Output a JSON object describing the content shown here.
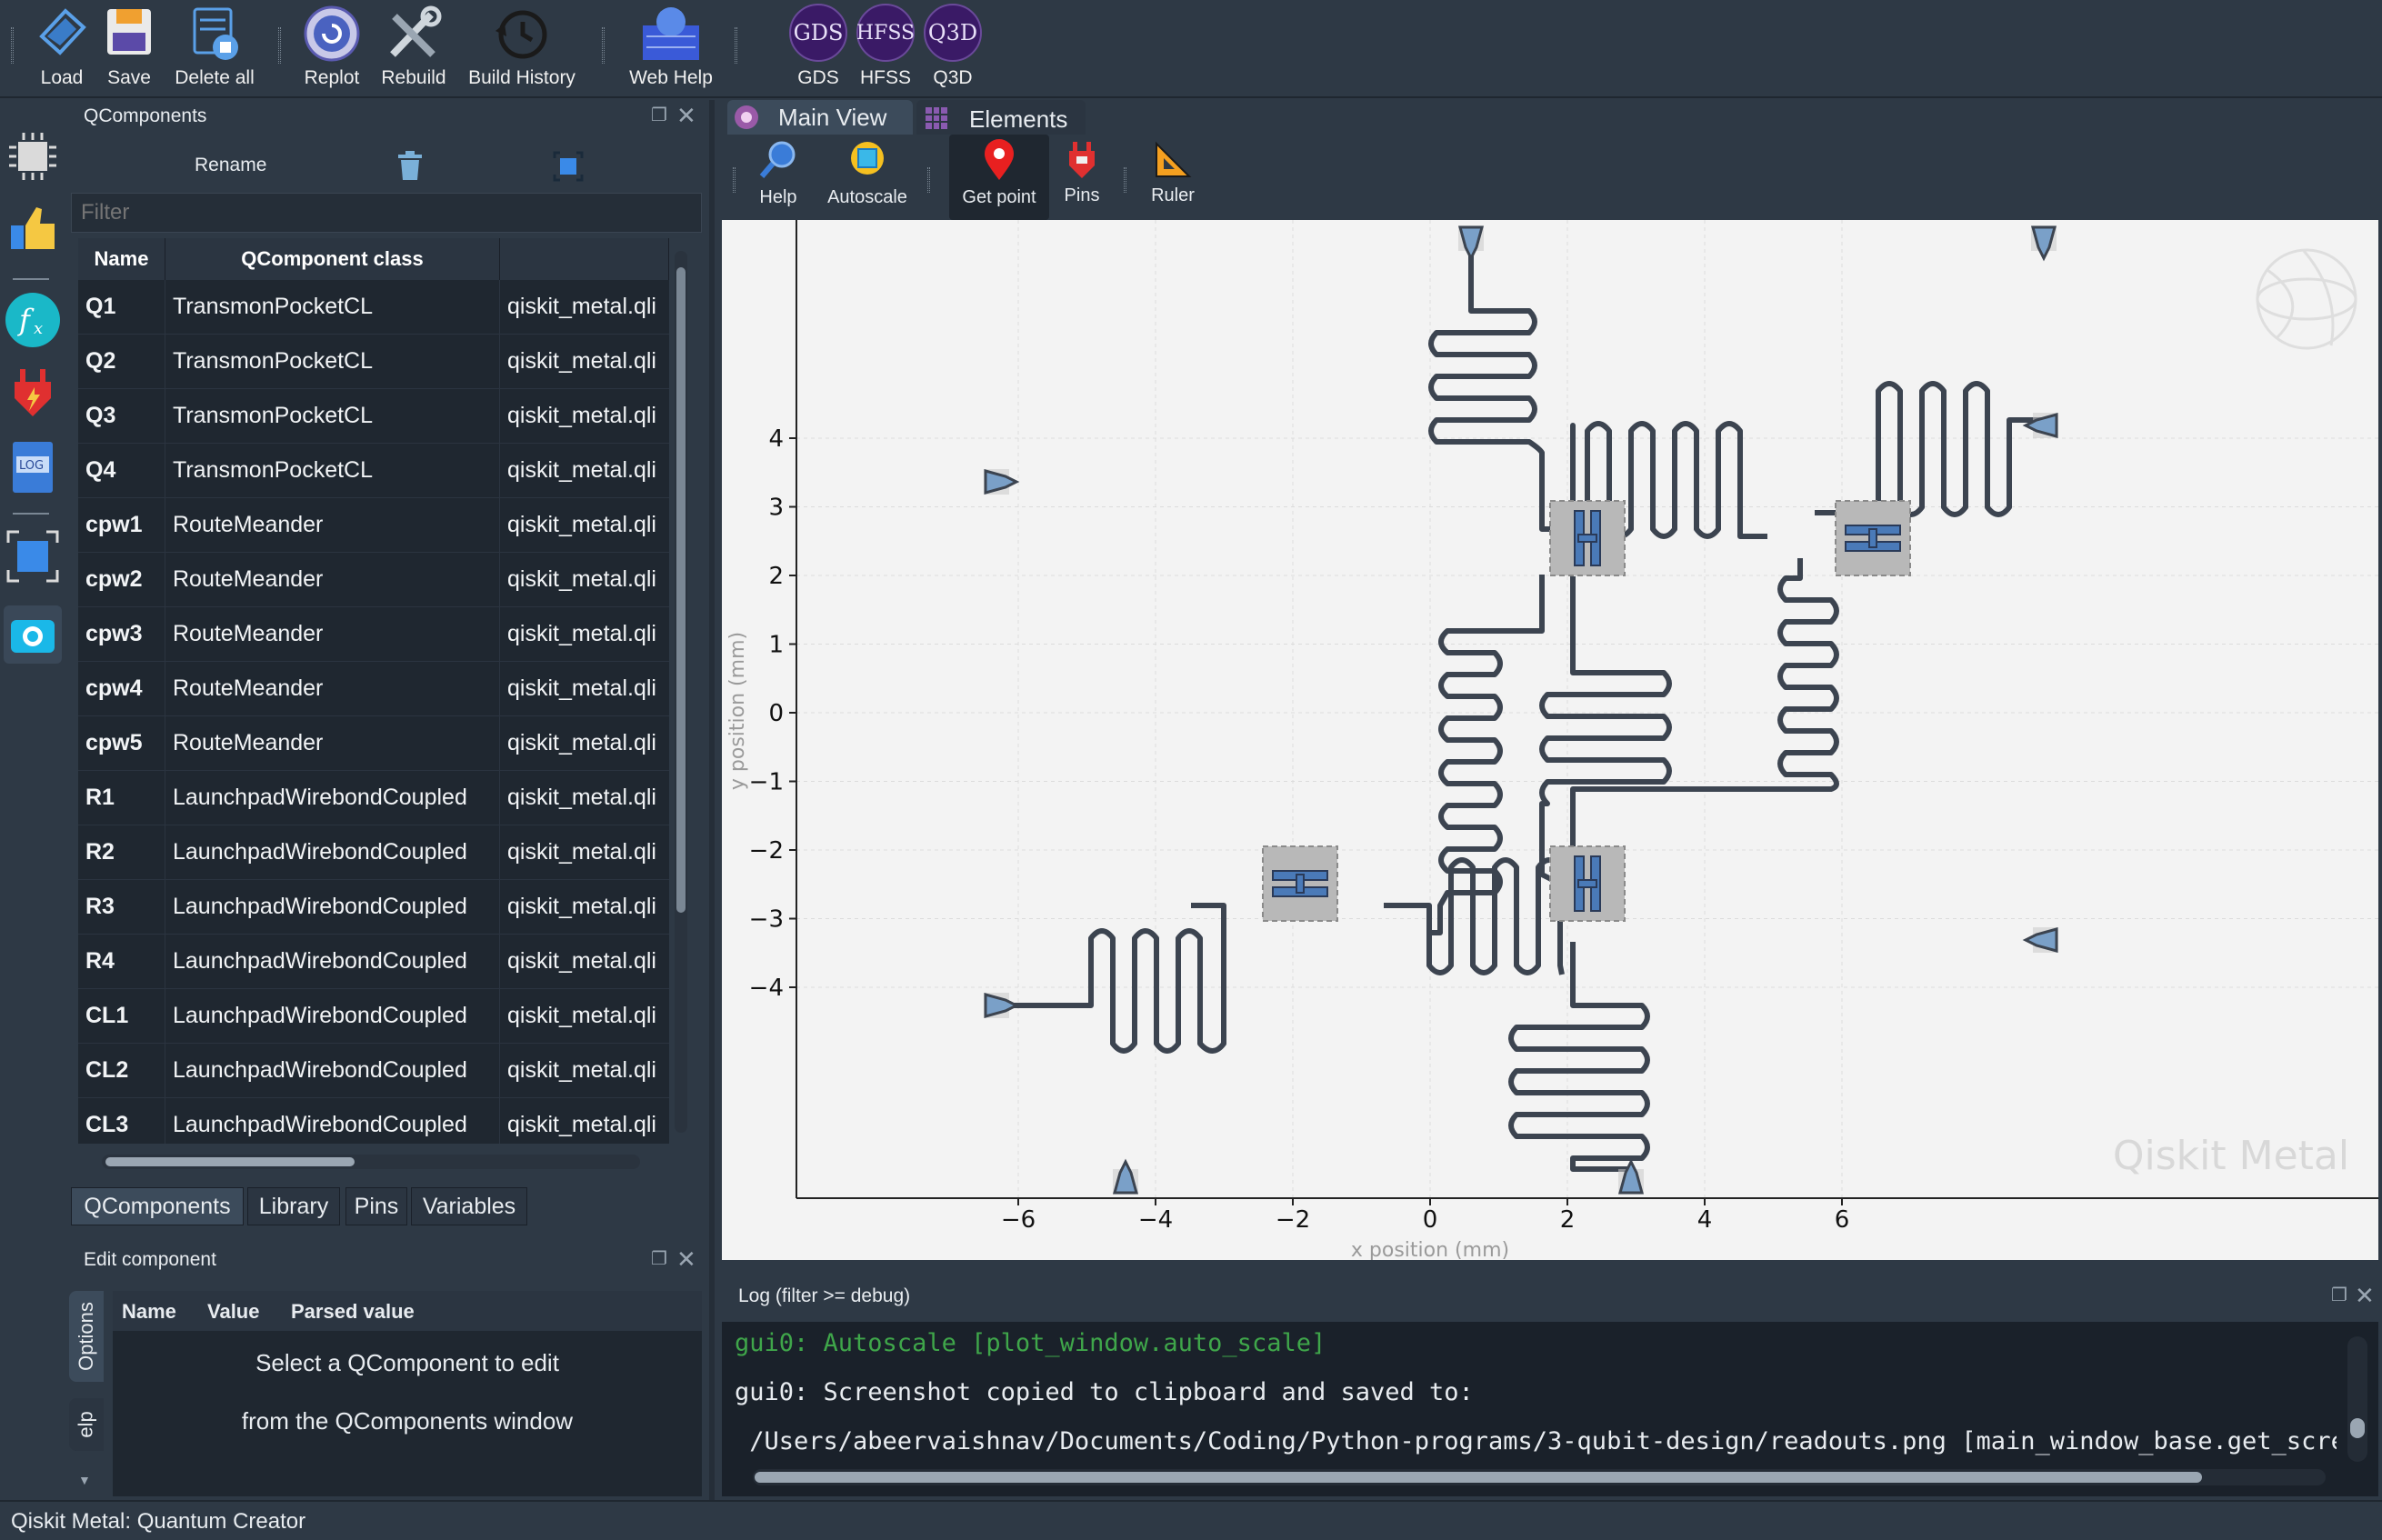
{
  "toolbar": {
    "load": "Load",
    "save": "Save",
    "delete_all": "Delete all",
    "replot": "Replot",
    "rebuild": "Rebuild",
    "build_history": "Build History",
    "web_help": "Web Help",
    "gds_icon": "GDS",
    "hfss_icon": "HFSS",
    "q3d_icon": "Q3D",
    "gds": "GDS",
    "hfss": "HFSS",
    "q3d": "Q3D"
  },
  "qcomponents": {
    "title": "QComponents",
    "rename": "Rename",
    "filter_placeholder": "Filter",
    "columns": [
      "Name",
      "QComponent class",
      ""
    ],
    "rows": [
      {
        "name": "Q1",
        "cls": "TransmonPocketCL",
        "mod": "qiskit_metal.qli"
      },
      {
        "name": "Q2",
        "cls": "TransmonPocketCL",
        "mod": "qiskit_metal.qli"
      },
      {
        "name": "Q3",
        "cls": "TransmonPocketCL",
        "mod": "qiskit_metal.qli"
      },
      {
        "name": "Q4",
        "cls": "TransmonPocketCL",
        "mod": "qiskit_metal.qli"
      },
      {
        "name": "cpw1",
        "cls": "RouteMeander",
        "mod": "qiskit_metal.qli"
      },
      {
        "name": "cpw2",
        "cls": "RouteMeander",
        "mod": "qiskit_metal.qli"
      },
      {
        "name": "cpw3",
        "cls": "RouteMeander",
        "mod": "qiskit_metal.qli"
      },
      {
        "name": "cpw4",
        "cls": "RouteMeander",
        "mod": "qiskit_metal.qli"
      },
      {
        "name": "cpw5",
        "cls": "RouteMeander",
        "mod": "qiskit_metal.qli"
      },
      {
        "name": "R1",
        "cls": "LaunchpadWirebondCoupled",
        "mod": "qiskit_metal.qli"
      },
      {
        "name": "R2",
        "cls": "LaunchpadWirebondCoupled",
        "mod": "qiskit_metal.qli"
      },
      {
        "name": "R3",
        "cls": "LaunchpadWirebondCoupled",
        "mod": "qiskit_metal.qli"
      },
      {
        "name": "R4",
        "cls": "LaunchpadWirebondCoupled",
        "mod": "qiskit_metal.qli"
      },
      {
        "name": "CL1",
        "cls": "LaunchpadWirebondCoupled",
        "mod": "qiskit_metal.qli"
      },
      {
        "name": "CL2",
        "cls": "LaunchpadWirebondCoupled",
        "mod": "qiskit_metal.qli"
      },
      {
        "name": "CL3",
        "cls": "LaunchpadWirebondCoupled",
        "mod": "qiskit_metal.qli"
      }
    ],
    "tabs": [
      "QComponents",
      "Library",
      "Pins",
      "Variables"
    ],
    "active_tab": "QComponents"
  },
  "edit_component": {
    "title": "Edit component",
    "columns": [
      "Name",
      "Value",
      "Parsed value"
    ],
    "message_line1": "Select a QComponent to edit",
    "message_line2": "from the QComponents window",
    "side_tabs": [
      "Options",
      "elp"
    ]
  },
  "main_view": {
    "tabs": [
      "Main View",
      "Elements"
    ],
    "active_tab": "Main View",
    "tools": {
      "help": "Help",
      "autoscale": "Autoscale",
      "get_point": "Get point",
      "pins": "Pins",
      "ruler": "Ruler"
    },
    "xlabel": "x position (mm)",
    "ylabel": "y position (mm)",
    "x_ticks": [
      "−6",
      "−4",
      "−2",
      "0",
      "2",
      "4",
      "6"
    ],
    "y_ticks": [
      "4",
      "3",
      "2",
      "1",
      "0",
      "−1",
      "−2",
      "−3",
      "−4"
    ],
    "watermark": "Qiskit Metal"
  },
  "log": {
    "title": "Log  (filter >= debug)",
    "lines": [
      "gui0: Autoscale [plot_window.auto_scale]",
      "gui0: Screenshot copied to clipboard and saved to:",
      " /Users/abeervaishnav/Documents/Coding/Python-programs/3-qubit-design/readouts.png [main_window_base.get_screen"
    ],
    "line_colors": [
      "#3fa64a",
      "#e8ecf0",
      "#e8ecf0"
    ]
  },
  "status": {
    "text": "Qiskit Metal: Quantum Creator"
  }
}
